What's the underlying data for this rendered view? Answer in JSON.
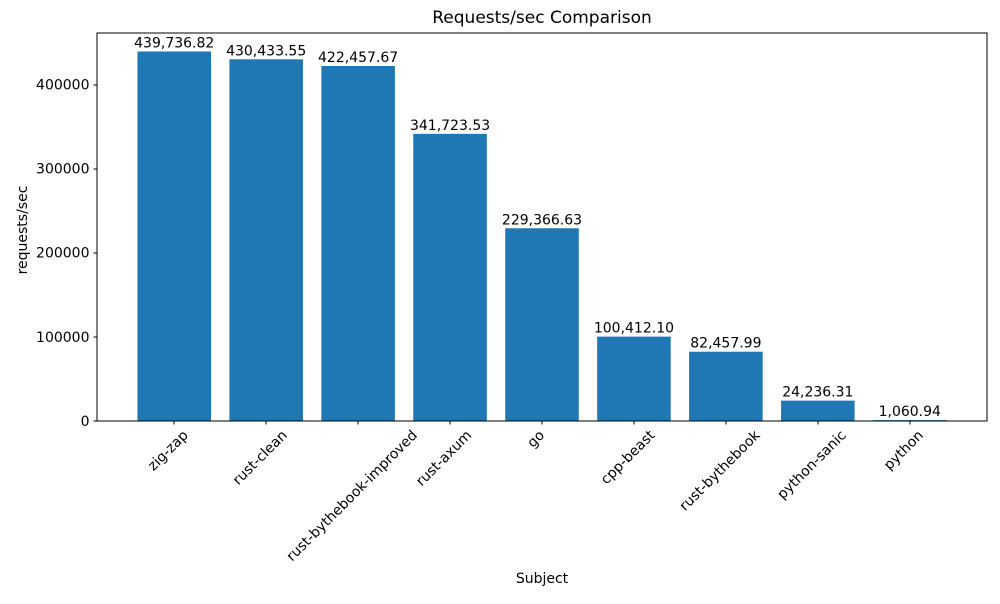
{
  "chart_data": {
    "type": "bar",
    "title": "Requests/sec Comparison",
    "xlabel": "Subject",
    "ylabel": "requests/sec",
    "categories": [
      "zig-zap",
      "rust-clean",
      "rust-bythebook-improved",
      "rust-axum",
      "go",
      "cpp-beast",
      "rust-bythebook",
      "python-sanic",
      "python"
    ],
    "values": [
      439736.82,
      430433.55,
      422457.67,
      341723.53,
      229366.63,
      100412.1,
      82457.99,
      24236.31,
      1060.94
    ],
    "bar_labels": [
      "439,736.82",
      "430,433.55",
      "422,457.67",
      "341,723.53",
      "229,366.63",
      "100,412.10",
      "82,457.99",
      "24,236.31",
      "1,060.94"
    ],
    "ytick_values": [
      0,
      100000,
      200000,
      300000,
      400000
    ],
    "ytick_labels": [
      "0",
      "100000",
      "200000",
      "300000",
      "400000"
    ],
    "ylim": [
      0,
      461724
    ],
    "xtick_rotation_deg": 45,
    "grid": false,
    "legend": "none",
    "bar_color": "#1f77b4",
    "spine_color": "#000000",
    "text_color": "#000000",
    "background_color": "#ffffff"
  }
}
